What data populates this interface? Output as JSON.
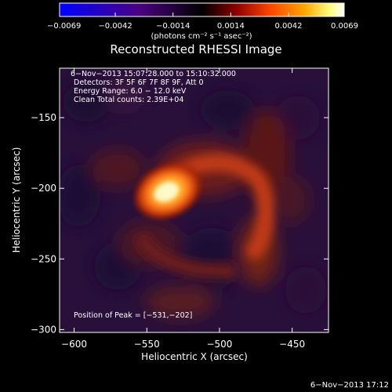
{
  "chart_data": {
    "type": "heatmap",
    "title": "Reconstructed RHESSI Image",
    "xlabel": "Heliocentric X (arcsec)",
    "ylabel": "Heliocentric Y (arcsec)",
    "xlim": [
      -610,
      -425
    ],
    "ylim": [
      -302,
      -115
    ],
    "x_ticks": [
      -600,
      -550,
      -500,
      -450
    ],
    "y_ticks": [
      -150,
      -200,
      -250,
      -300
    ],
    "x_tick_labels": [
      "−600",
      "−550",
      "−500",
      "−450"
    ],
    "y_tick_labels": [
      "−150",
      "−200",
      "−250",
      "−300"
    ],
    "colorbar": {
      "range": [
        -0.0069,
        0.0069
      ],
      "ticks": [
        -0.0069,
        -0.0042,
        -0.0014,
        0.0014,
        0.0042,
        0.0069
      ],
      "tick_labels": [
        "−0.0069",
        "−0.0042",
        "−0.0014",
        "0.0014",
        "0.0042",
        "0.0069"
      ],
      "unit_label": "(photons cm⁻² s⁻¹ asec⁻²)",
      "colors": [
        "#0000ff",
        "#4b0082",
        "#000000",
        "#8b0000",
        "#ff4500",
        "#ffa500",
        "#ffff80",
        "#ffffff"
      ]
    },
    "info_lines": [
      "6−Nov−2013 15:07:28.000 to 15:10:32.000",
      "Detectors: 3F 5F 6F 7F 8F 9F, Att 0",
      "Energy Range: 6.0 − 12.0 keV",
      "Clean     Total counts: 2.39E+04"
    ],
    "peak_label": "Position of Peak = [−531,−202]",
    "peak_position": [
      -531,
      -202
    ],
    "footer_timestamp": "6−Nov−2013 17:12"
  }
}
